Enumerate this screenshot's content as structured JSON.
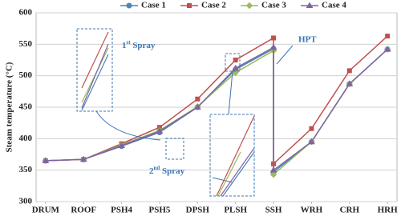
{
  "chart_data": {
    "type": "line",
    "ylabel": "Steam temperature (°C)",
    "x": [
      0,
      1,
      2,
      3,
      4,
      5,
      6,
      6,
      7,
      8,
      9
    ],
    "xlim": [
      -0.25,
      9.25
    ],
    "xticks": [
      {
        "value": 0,
        "label": "DRUM"
      },
      {
        "value": 1,
        "label": "ROOF"
      },
      {
        "value": 2,
        "label": "PSH4"
      },
      {
        "value": 3,
        "label": "PSH5"
      },
      {
        "value": 4,
        "label": "DPSH"
      },
      {
        "value": 5,
        "label": "PLSH"
      },
      {
        "value": 6,
        "label": "SSH"
      },
      {
        "value": 7,
        "label": "WRH"
      },
      {
        "value": 8,
        "label": "CRH"
      },
      {
        "value": 9,
        "label": "HRH"
      }
    ],
    "ylim": [
      300,
      600
    ],
    "yticks": [
      300,
      350,
      400,
      450,
      500,
      550,
      600
    ],
    "grid": true,
    "legend": "top",
    "series": [
      {
        "name": "Case 1",
        "color": "#4f81bd",
        "marker": "circle",
        "values": [
          365,
          367,
          388,
          410,
          450,
          510,
          543,
          347,
          395,
          487,
          542
        ]
      },
      {
        "name": "Case 2",
        "color": "#c0504d",
        "marker": "square",
        "values": [
          365,
          367,
          392,
          418,
          463,
          525,
          560,
          360,
          416,
          508,
          563
        ]
      },
      {
        "name": "Case 3",
        "color": "#9bbb59",
        "marker": "diamond",
        "values": [
          365,
          367,
          390,
          413,
          451,
          505,
          540,
          343,
          395,
          487,
          542
        ]
      },
      {
        "name": "Case 4",
        "color": "#8064a2",
        "marker": "triangle",
        "values": [
          365,
          367,
          389,
          412,
          450,
          512,
          545,
          350,
          395,
          487,
          542
        ]
      }
    ],
    "annotations": [
      {
        "base": "1",
        "sup": "st",
        "text": " Spray"
      },
      {
        "base": "2",
        "sup": "nd",
        "text": " Spray"
      },
      {
        "text": "HPT"
      }
    ]
  }
}
